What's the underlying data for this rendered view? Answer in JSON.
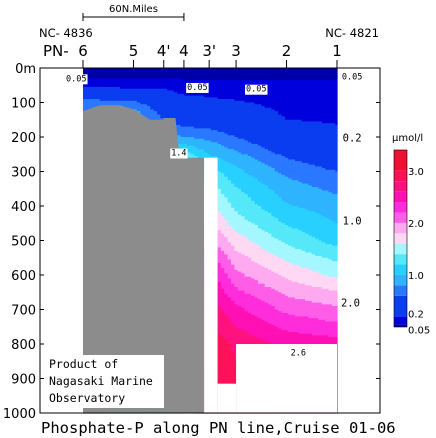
{
  "chart_data": {
    "type": "heatmap",
    "title": "Phosphate-P along PN line,Cruise 01-06",
    "scale_label": "60N.Miles",
    "end_labels": {
      "left": "NC- 4836",
      "right": "NC- 4821"
    },
    "line_label": "PN-",
    "stations": [
      {
        "name": "6",
        "dist_nm": 0
      },
      {
        "name": "5",
        "dist_nm": 30
      },
      {
        "name": "4'",
        "dist_nm": 48
      },
      {
        "name": "4",
        "dist_nm": 60
      },
      {
        "name": "3'",
        "dist_nm": 75
      },
      {
        "name": "3",
        "dist_nm": 91
      },
      {
        "name": "2",
        "dist_nm": 121
      },
      {
        "name": "1",
        "dist_nm": 151
      }
    ],
    "y_axis": {
      "range": [
        0,
        1000
      ],
      "ticks": [
        0,
        100,
        200,
        300,
        400,
        500,
        600,
        700,
        800,
        900,
        1000
      ],
      "top_tick_label": "0m"
    },
    "contour_labels": [
      {
        "text": "0.05",
        "x_nm": -4,
        "depth": 30
      },
      {
        "text": "0.05",
        "x_nm": 68,
        "depth": 55
      },
      {
        "text": "0.05",
        "x_nm": 103,
        "depth": 60
      },
      {
        "text": "0.05",
        "x_nm": 160,
        "depth": 25
      },
      {
        "text": "0.2",
        "x_nm": 160,
        "depth": 205
      },
      {
        "text": "1.4",
        "x_nm": 57,
        "depth": 245
      },
      {
        "text": "1.0",
        "x_nm": 160,
        "depth": 445
      },
      {
        "text": "2.0",
        "x_nm": 159,
        "depth": 682
      },
      {
        "text": "2.6",
        "x_nm": 128,
        "depth": 825
      }
    ],
    "colorbar": {
      "unit": "μmol/l",
      "labels": [
        "3.0",
        "2.0",
        "1.0",
        "0.2",
        "0.05"
      ],
      "bins": [
        {
          "from": 0,
          "to": 0.05,
          "color": "#0000a8"
        },
        {
          "from": 0.05,
          "to": 0.2,
          "color": "#0000dd"
        },
        {
          "from": 0.2,
          "to": 0.6,
          "color": "#0a3cf0"
        },
        {
          "from": 0.6,
          "to": 0.8,
          "color": "#2a78ff"
        },
        {
          "from": 0.8,
          "to": 1.0,
          "color": "#2eb4ff"
        },
        {
          "from": 1.0,
          "to": 1.2,
          "color": "#28d0ff"
        },
        {
          "from": 1.2,
          "to": 1.4,
          "color": "#55e8f8"
        },
        {
          "from": 1.4,
          "to": 1.6,
          "color": "#a4f6ff"
        },
        {
          "from": 1.6,
          "to": 1.8,
          "color": "#ffd8f4"
        },
        {
          "from": 1.8,
          "to": 2.0,
          "color": "#ffaaf0"
        },
        {
          "from": 2.0,
          "to": 2.2,
          "color": "#ff5ce8"
        },
        {
          "from": 2.2,
          "to": 2.4,
          "color": "#ff2cdc"
        },
        {
          "from": 2.4,
          "to": 2.6,
          "color": "#ff10b4"
        },
        {
          "from": 2.6,
          "to": 2.8,
          "color": "#ff1280"
        },
        {
          "from": 2.8,
          "to": 3.0,
          "color": "#ff1058"
        },
        {
          "from": 3.0,
          "to": 3.4,
          "color": "#f01034"
        }
      ]
    },
    "profiles": [
      {
        "x_nm": 0,
        "depths": [
          0,
          30,
          60,
          100
        ],
        "values": [
          0.02,
          0.05,
          0.25,
          0.7
        ]
      },
      {
        "x_nm": 30,
        "depths": [
          0,
          30,
          60,
          100,
          125,
          140
        ],
        "values": [
          0.02,
          0.05,
          0.2,
          0.65,
          0.85,
          0.9
        ]
      },
      {
        "x_nm": 48,
        "depths": [
          0,
          30,
          60,
          100,
          150,
          200,
          230,
          255
        ],
        "values": [
          0.02,
          0.05,
          0.2,
          0.4,
          0.6,
          0.9,
          1.1,
          1.35
        ]
      },
      {
        "x_nm": 60,
        "depths": [
          0,
          30,
          60,
          100,
          150,
          200,
          240,
          255
        ],
        "values": [
          0.02,
          0.04,
          0.12,
          0.3,
          0.45,
          0.8,
          1.2,
          1.38
        ]
      },
      {
        "x_nm": 75,
        "depths": [
          0,
          30,
          60,
          100,
          150,
          200,
          250,
          300,
          350,
          400,
          450,
          500,
          550,
          600,
          700,
          800,
          900
        ],
        "values": [
          0.02,
          0.04,
          0.12,
          0.25,
          0.45,
          0.75,
          1.0,
          1.3,
          1.5,
          1.65,
          1.85,
          2.05,
          2.3,
          2.5,
          2.75,
          2.95,
          3.05
        ]
      },
      {
        "x_nm": 91,
        "depths": [
          0,
          30,
          60,
          100,
          150,
          200,
          250,
          300,
          350,
          400,
          450,
          500,
          550,
          600,
          650,
          700,
          750,
          800,
          900
        ],
        "values": [
          0.02,
          0.04,
          0.1,
          0.22,
          0.35,
          0.6,
          0.85,
          1.05,
          1.22,
          1.35,
          1.5,
          1.7,
          1.88,
          2.05,
          2.25,
          2.45,
          2.6,
          2.75,
          2.85
        ]
      },
      {
        "x_nm": 121,
        "depths": [
          0,
          30,
          60,
          100,
          150,
          200,
          250,
          300,
          350,
          400,
          450,
          500,
          550,
          600,
          650,
          700,
          750,
          800
        ],
        "values": [
          0.02,
          0.04,
          0.09,
          0.15,
          0.2,
          0.35,
          0.55,
          0.75,
          0.9,
          1.02,
          1.18,
          1.35,
          1.55,
          1.75,
          1.95,
          2.15,
          2.35,
          2.55
        ]
      },
      {
        "x_nm": 151,
        "depths": [
          0,
          30,
          60,
          100,
          150,
          200,
          250,
          300,
          350,
          400,
          450,
          500,
          550,
          600,
          650,
          700,
          750,
          800
        ],
        "values": [
          0.02,
          0.04,
          0.08,
          0.12,
          0.18,
          0.25,
          0.4,
          0.6,
          0.75,
          0.9,
          1.0,
          1.12,
          1.35,
          1.55,
          1.82,
          2.05,
          2.25,
          2.5
        ]
      }
    ],
    "bottom_profile": [
      {
        "x_nm": 0,
        "depth": 1000
      },
      {
        "x_nm": 0,
        "depth": 125
      },
      {
        "x_nm": 10,
        "depth": 108
      },
      {
        "x_nm": 22,
        "depth": 108
      },
      {
        "x_nm": 30,
        "depth": 120
      },
      {
        "x_nm": 40,
        "depth": 150
      },
      {
        "x_nm": 48,
        "depth": 150
      },
      {
        "x_nm": 48,
        "depth": 145
      },
      {
        "x_nm": 55,
        "depth": 145
      },
      {
        "x_nm": 57,
        "depth": 240
      },
      {
        "x_nm": 60,
        "depth": 250
      },
      {
        "x_nm": 60,
        "depth": 260
      },
      {
        "x_nm": 72,
        "depth": 260
      },
      {
        "x_nm": 72,
        "depth": 1000
      },
      {
        "x_nm": 151,
        "depth": 1000
      },
      {
        "x_nm": 151,
        "depth": 950
      },
      {
        "x_nm": 142,
        "depth": 980
      },
      {
        "x_nm": 135,
        "depth": 920
      },
      {
        "x_nm": 128,
        "depth": 830
      },
      {
        "x_nm": 117,
        "depth": 830
      },
      {
        "x_nm": 112,
        "depth": 900
      },
      {
        "x_nm": 106,
        "depth": 1000
      },
      {
        "x_nm": 88,
        "depth": 1000
      },
      {
        "x_nm": 86,
        "depth": 965
      },
      {
        "x_nm": 84,
        "depth": 1000
      }
    ],
    "sampling_gaps": [
      {
        "x_nm": [
          72,
          80
        ],
        "depth": [
          260,
          1000
        ]
      },
      {
        "x_nm": [
          80,
          91
        ],
        "depth": [
          915,
          1000
        ]
      },
      {
        "x_nm": [
          91,
          151
        ],
        "depth": [
          800,
          1000
        ]
      }
    ]
  },
  "credit": {
    "line1": "Product of",
    "line2": "Nagasaki Marine",
    "line3": "Observatory"
  }
}
